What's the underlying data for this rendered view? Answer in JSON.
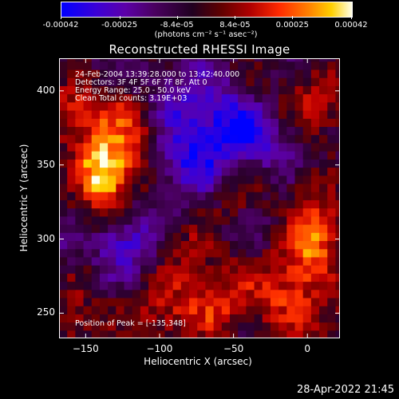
{
  "colorbar": {
    "tick_labels": [
      "-0.00042",
      "-0.00025",
      "-8.4e-05",
      "8.4e-05",
      "0.00025",
      "0.00042"
    ],
    "tick_values": [
      -0.00042,
      -0.00025,
      -8.4e-05,
      8.4e-05,
      0.00025,
      0.00042
    ],
    "units": "(photons cm⁻² s⁻¹ asec⁻²)",
    "range": [
      -0.00042,
      0.00042
    ]
  },
  "chart_data": {
    "type": "heatmap",
    "title": "Reconstructed RHESSI Image",
    "xlabel": "Heliocentric X (arcsec)",
    "ylabel": "Heliocentric Y (arcsec)",
    "xlim": [
      -168,
      22
    ],
    "ylim": [
      233,
      422
    ],
    "x_ticks": [
      -150,
      -100,
      -50,
      0
    ],
    "x_tick_labels": [
      "−150",
      "−100",
      "−50",
      "0"
    ],
    "y_ticks": [
      250,
      300,
      350,
      400
    ],
    "y_tick_labels": [
      "250",
      "300",
      "350",
      "400"
    ],
    "colors": {
      "low": "#0000ff",
      "mid": "#3a0044",
      "high": "#ffffe8"
    },
    "peak": [
      -135,
      348
    ],
    "hotspots": [
      {
        "x": -135,
        "y": 348,
        "level": 1.0
      },
      {
        "x": -155,
        "y": 385,
        "level": 0.7
      },
      {
        "x": -115,
        "y": 375,
        "level": 0.6
      },
      {
        "x": -140,
        "y": 320,
        "level": 0.6
      },
      {
        "x": -155,
        "y": 290,
        "level": 0.55
      },
      {
        "x": -5,
        "y": 297,
        "level": 0.8
      },
      {
        "x": 5,
        "y": 315,
        "level": 0.6
      },
      {
        "x": 8,
        "y": 390,
        "level": 0.55
      },
      {
        "x": -40,
        "y": 330,
        "level": 0.5
      },
      {
        "x": -60,
        "y": 255,
        "level": 0.55
      },
      {
        "x": -100,
        "y": 250,
        "level": 0.5
      },
      {
        "x": -20,
        "y": 265,
        "level": 0.5
      },
      {
        "x": 10,
        "y": 245,
        "level": 0.45
      },
      {
        "x": -160,
        "y": 245,
        "level": 0.45
      },
      {
        "x": -80,
        "y": 290,
        "level": 0.4
      },
      {
        "x": -70,
        "y": 360,
        "level": 0.35
      },
      {
        "x": -40,
        "y": 400,
        "level": 0.4
      }
    ],
    "coldspots": [
      {
        "x": -75,
        "y": 355,
        "level": -0.9
      },
      {
        "x": -125,
        "y": 300,
        "level": -0.7
      },
      {
        "x": -160,
        "y": 295,
        "level": -0.6
      },
      {
        "x": -40,
        "y": 370,
        "level": -0.8
      },
      {
        "x": -20,
        "y": 310,
        "level": -0.6
      },
      {
        "x": -55,
        "y": 395,
        "level": -0.5
      },
      {
        "x": -90,
        "y": 385,
        "level": -0.5
      }
    ],
    "annotations": [
      "24-Feb-2004 13:39:28.000 to 13:42:40.000",
      "Detectors: 3F 4F 5F 6F 7F 8F, Att 0",
      "Energy Range: 25.0 - 50.0 keV",
      "Clean     Total counts: 3.19E+03"
    ],
    "peak_label": "Position of Peak = [-135,348]"
  },
  "timestamp": "28-Apr-2022 21:45"
}
